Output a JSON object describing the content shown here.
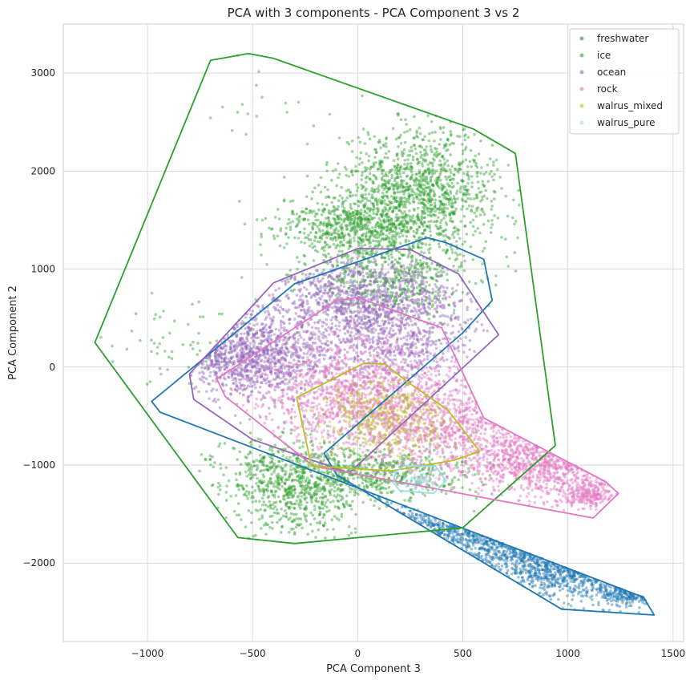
{
  "chart_data": {
    "type": "scatter",
    "title": "PCA with 3 components - PCA Component 3 vs 2",
    "xlabel": "PCA Component 3",
    "ylabel": "PCA Component 2",
    "xlim": [
      -1400,
      1550
    ],
    "ylim": [
      -2800,
      3500
    ],
    "xticks": [
      -1000,
      -500,
      0,
      500,
      1000,
      1500
    ],
    "yticks": [
      -2000,
      -1000,
      0,
      1000,
      2000,
      3000
    ],
    "grid": true,
    "legend_position": "top-right",
    "series": [
      {
        "name": "freshwater",
        "color": "#1f77b4",
        "hull": [
          [
            -980,
            -350
          ],
          [
            -940,
            -460
          ],
          [
            1360,
            -2350
          ],
          [
            1410,
            -2530
          ],
          [
            970,
            -2470
          ],
          [
            -100,
            -1100
          ],
          [
            -160,
            -880
          ],
          [
            500,
            350
          ],
          [
            640,
            680
          ],
          [
            600,
            1100
          ],
          [
            420,
            1270
          ],
          [
            330,
            1320
          ],
          [
            -300,
            850
          ]
        ],
        "clusters": [
          {
            "cx": 700,
            "cy": -1500,
            "sx": 220,
            "sy": 260,
            "n": 700
          },
          {
            "cx": 1050,
            "cy": -2000,
            "sx": 180,
            "sy": 170,
            "n": 500
          },
          {
            "cx": 1300,
            "cy": -2300,
            "sx": 70,
            "sy": 70,
            "n": 150
          },
          {
            "cx": 400,
            "cy": -1150,
            "sx": 180,
            "sy": 160,
            "n": 400
          }
        ]
      },
      {
        "name": "ice",
        "color": "#2ca02c",
        "hull": [
          [
            -700,
            3130
          ],
          [
            -520,
            3200
          ],
          [
            -400,
            3150
          ],
          [
            550,
            2430
          ],
          [
            750,
            2180
          ],
          [
            940,
            -800
          ],
          [
            500,
            -1640
          ],
          [
            -300,
            -1800
          ],
          [
            -570,
            -1740
          ],
          [
            -1250,
            250
          ]
        ],
        "clusters": [
          {
            "cx": 300,
            "cy": 1800,
            "sx": 180,
            "sy": 330,
            "n": 1200
          },
          {
            "cx": 0,
            "cy": 1450,
            "sx": 180,
            "sy": 170,
            "n": 700
          },
          {
            "cx": 150,
            "cy": 900,
            "sx": 200,
            "sy": 200,
            "n": 500
          },
          {
            "cx": -300,
            "cy": -1200,
            "sx": 170,
            "sy": 250,
            "n": 800
          },
          {
            "cx": 100,
            "cy": -1100,
            "sx": 220,
            "sy": 140,
            "n": 500
          },
          {
            "cx": -900,
            "cy": 300,
            "sx": 180,
            "sy": 220,
            "n": 60
          },
          {
            "cx": -500,
            "cy": 2700,
            "sx": 150,
            "sy": 250,
            "n": 15
          }
        ]
      },
      {
        "name": "ocean",
        "color": "#9467bd",
        "hull": [
          [
            -800,
            -70
          ],
          [
            -780,
            -330
          ],
          [
            -500,
            -740
          ],
          [
            -40,
            -1080
          ],
          [
            670,
            330
          ],
          [
            480,
            950
          ],
          [
            250,
            1200
          ],
          [
            0,
            1210
          ],
          [
            -400,
            860
          ]
        ],
        "clusters": [
          {
            "cx": -500,
            "cy": 100,
            "sx": 200,
            "sy": 220,
            "n": 1100
          },
          {
            "cx": 0,
            "cy": 700,
            "sx": 250,
            "sy": 200,
            "n": 1000
          },
          {
            "cx": 200,
            "cy": 250,
            "sx": 200,
            "sy": 200,
            "n": 500
          }
        ]
      },
      {
        "name": "rock",
        "color": "#e377c2",
        "hull": [
          [
            -670,
            -120
          ],
          [
            -630,
            -300
          ],
          [
            -210,
            -1010
          ],
          [
            1120,
            -1540
          ],
          [
            1240,
            -1290
          ],
          [
            1180,
            -1170
          ],
          [
            600,
            -520
          ],
          [
            400,
            400
          ],
          [
            0,
            710
          ],
          [
            -100,
            680
          ]
        ],
        "clusters": [
          {
            "cx": 0,
            "cy": -300,
            "sx": 240,
            "sy": 300,
            "n": 1200
          },
          {
            "cx": 500,
            "cy": -600,
            "sx": 250,
            "sy": 300,
            "n": 900
          },
          {
            "cx": 900,
            "cy": -1000,
            "sx": 160,
            "sy": 160,
            "n": 600
          },
          {
            "cx": 1100,
            "cy": -1300,
            "sx": 80,
            "sy": 80,
            "n": 250
          }
        ]
      },
      {
        "name": "walrus_mixed",
        "color": "#bcbd22",
        "hull": [
          [
            -290,
            -310
          ],
          [
            -220,
            -1010
          ],
          [
            160,
            -1060
          ],
          [
            460,
            -950
          ],
          [
            580,
            -860
          ],
          [
            430,
            -440
          ],
          [
            230,
            -140
          ],
          [
            130,
            30
          ],
          [
            30,
            40
          ]
        ],
        "clusters": [
          {
            "cx": 150,
            "cy": -500,
            "sx": 150,
            "sy": 200,
            "n": 400
          }
        ]
      },
      {
        "name": "walrus_pure",
        "color": "#9edae5",
        "hull": [
          [
            180,
            -1070
          ],
          [
            220,
            -1010
          ],
          [
            370,
            -1010
          ],
          [
            420,
            -1160
          ],
          [
            360,
            -1290
          ],
          [
            200,
            -1260
          ],
          [
            170,
            -1180
          ]
        ],
        "clusters": [
          {
            "cx": 290,
            "cy": -1150,
            "sx": 50,
            "sy": 60,
            "n": 60
          }
        ]
      }
    ]
  }
}
